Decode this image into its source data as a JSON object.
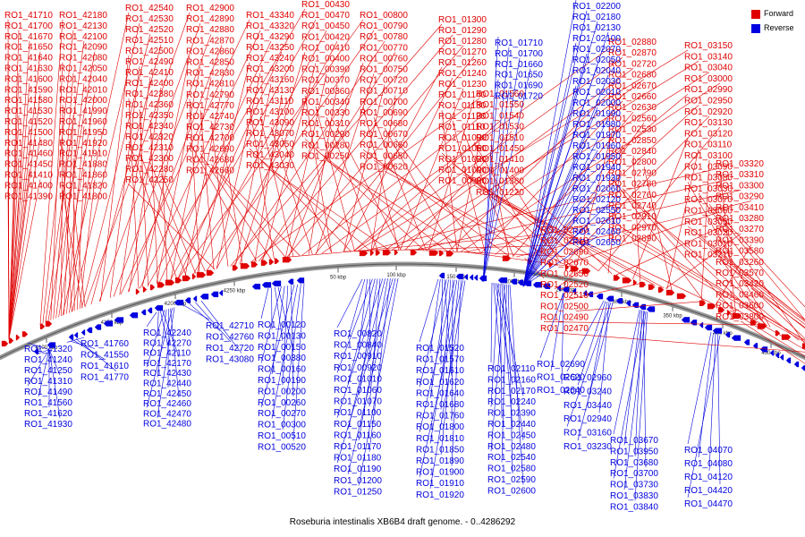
{
  "caption": "Roseburia intestinalis XB6B4 draft genome. - 0..4286292",
  "legend": [
    {
      "label": "Forward",
      "color": "#e00000"
    },
    {
      "label": "Reverse",
      "color": "#0000e0"
    }
  ],
  "ticks": [
    "4100 kbp",
    "4150 kbp",
    "4200 kbp",
    "4250 kbp",
    "50 kbp",
    "100 kbp",
    "150 kbp",
    "200 kbp",
    "250 kbp",
    "300 kbp",
    "350 kbp",
    "400 kbp",
    "450 kbp"
  ],
  "forward_groups": [
    {
      "labels": [
        "RO1_41710",
        "RO1_41700",
        "RO1_41670",
        "RO1_41650",
        "RO1_41640",
        "RO1_41630",
        "RO1_41600",
        "RO1_41590",
        "RO1_41580",
        "RO1_41530",
        "RO1_41520",
        "RO1_41500",
        "RO1_41480",
        "RO1_41460",
        "RO1_41450",
        "RO1_41410",
        "RO1_41400",
        "RO1_41390"
      ]
    },
    {
      "labels": [
        "RO1_42180",
        "RO1_42130",
        "RO1_42100",
        "RO1_42090",
        "RO1_42080",
        "RO1_42050",
        "RO1_42040",
        "RO1_42010",
        "RO1_42000",
        "RO1_41990",
        "RO1_41960",
        "RO1_41950",
        "RO1_41920",
        "RO1_41910",
        "RO1_41880",
        "RO1_41860",
        "RO1_41820",
        "RO1_41800"
      ]
    },
    {
      "labels": [
        "RO1_42540",
        "RO1_42530",
        "RO1_42520",
        "RO1_42510",
        "RO1_42500",
        "RO1_42490",
        "RO1_42410",
        "RO1_42400",
        "RO1_42380",
        "RO1_42360",
        "RO1_42350",
        "RO1_42340",
        "RO1_42320",
        "RO1_42310",
        "RO1_42300",
        "RO1_42280",
        "RO1_42250"
      ]
    },
    {
      "labels": [
        "RO1_42900",
        "RO1_42890",
        "RO1_42880",
        "RO1_42870",
        "RO1_42860",
        "RO1_42850",
        "RO1_42830",
        "RO1_42810",
        "RO1_42790",
        "RO1_42770",
        "RO1_42740",
        "RO1_42730",
        "RO1_42700",
        "RO1_42690",
        "RO1_42680",
        "RO1_42660"
      ]
    },
    {
      "labels": [
        "RO1_43340",
        "RO1_43320",
        "RO1_43290",
        "RO1_43250",
        "RO1_43240",
        "RO1_43200",
        "RO1_43160",
        "RO1_43130",
        "RO1_43110",
        "RO1_43100",
        "RO1_43090",
        "RO1_43070",
        "RO1_43050",
        "RO1_43040",
        "RO1_43030"
      ]
    },
    {
      "labels": [
        "RO1_00430",
        "RO1_00470",
        "RO1_00450",
        "RO1_00420",
        "RO1_00410",
        "RO1_00400",
        "RO1_00390",
        "RO1_00370",
        "RO1_00360",
        "RO1_00340",
        "RO1_00330",
        "RO1_00310",
        "RO1_00290",
        "RO1_00280",
        "RO1_00250"
      ]
    },
    {
      "labels": [
        "RO1_00800",
        "RO1_00790",
        "RO1_00780",
        "RO1_00770",
        "RO1_00760",
        "RO1_00750",
        "RO1_00720",
        "RO1_00710",
        "RO1_00700",
        "RO1_00690",
        "RO1_00680",
        "RO1_00670",
        "RO1_00660",
        "RO1_00650",
        "RO1_00620"
      ]
    },
    {
      "labels": [
        "RO1_01300",
        "RO1_01290",
        "RO1_01280",
        "RO1_01270",
        "RO1_01260",
        "RO1_01240",
        "RO1_01230",
        "RO1_01140",
        "RO1_01130",
        "RO1_01120",
        "RO1_01110",
        "RO1_01090",
        "RO1_01050",
        "RO1_01020",
        "RO1_01000",
        "RO1_00980"
      ]
    },
    {
      "labels": [
        "RO1_01560",
        "RO1_01550",
        "RO1_01540",
        "RO1_01530",
        "RO1_01510",
        "RO1_01450",
        "RO1_01410",
        "RO1_01400",
        "RO1_01380",
        "RO1_01220"
      ]
    },
    {
      "labels": [
        "RO1_02730",
        "RO1_02710",
        "RO1_02690",
        "RO1_02670",
        "RO1_02650",
        "RO1_02520",
        "RO1_02510",
        "RO1_02500",
        "RO1_02490",
        "RO1_02470"
      ]
    },
    {
      "labels": [
        "RO1_02880",
        "RO1_02870",
        "RO1_02720",
        "RO1_02680",
        "RO1_02670",
        "RO1_02660",
        "RO1_02630",
        "RO1_02560",
        "RO1_02530",
        "RO1_02850",
        "RO1_02840",
        "RO1_02800",
        "RO1_02790",
        "RO1_02780",
        "RO1_02760",
        "RO1_02740",
        "RO1_02910",
        "RO1_02970",
        "RO1_02890"
      ]
    },
    {
      "labels": [
        "RO1_03150",
        "RO1_03140",
        "RO1_03040",
        "RO1_03000",
        "RO1_02990",
        "RO1_02950",
        "RO1_02920",
        "RO1_03130",
        "RO1_03120",
        "RO1_03110",
        "RO1_03100",
        "RO1_03090",
        "RO1_03080",
        "RO1_03030",
        "RO1_03070",
        "RO1_03060",
        "RO1_03050",
        "RO1_03020",
        "RO1_03010",
        "RO1_03210"
      ]
    },
    {
      "labels": [
        "RO1_03320",
        "RO1_03310",
        "RO1_03300",
        "RO1_03290",
        "RO1_03410",
        "RO1_03280",
        "RO1_03270",
        "RO1_03390",
        "RO1_03580",
        "RO1_03260",
        "RO1_03570",
        "RO1_03420",
        "RO1_03460",
        "RO1_03600",
        "RO1_03800"
      ]
    }
  ],
  "reverse_groups": [
    {
      "labels": [
        "RO1_41320",
        "RO1_41240",
        "RO1_41250",
        "RO1_41310",
        "RO1_41490",
        "RO1_41560",
        "RO1_41620",
        "RO1_41930"
      ]
    },
    {
      "labels": [
        "RO1_41760",
        "RO1_41550",
        "RO1_41610",
        "RO1_41770"
      ]
    },
    {
      "labels": [
        "RO1_42240",
        "RO1_42270",
        "RO1_42110",
        "RO1_42170",
        "RO1_42430",
        "RO1_42440",
        "RO1_42450",
        "RO1_42460",
        "RO1_42470",
        "RO1_42480"
      ]
    },
    {
      "labels": [
        "RO1_42710",
        "RO1_42760",
        "RO1_42720",
        "RO1_43080"
      ]
    },
    {
      "labels": [
        "RO1_00120",
        "RO1_00130",
        "RO1_00150",
        "RO1_00380",
        "RO1_00160",
        "RO1_00190",
        "RO1_00200",
        "RO1_00260",
        "RO1_00270",
        "RO1_00300",
        "RO1_00510",
        "RO1_00520"
      ]
    },
    {
      "labels": [
        "RO1_00820",
        "RO1_00840",
        "RO1_00910",
        "RO1_00920",
        "RO1_01010",
        "RO1_01060",
        "RO1_01070",
        "RO1_01100",
        "RO1_01150",
        "RO1_01160",
        "RO1_01170",
        "RO1_01180",
        "RO1_01190",
        "RO1_01200",
        "RO1_01250"
      ]
    },
    {
      "labels": [
        "RO1_01520",
        "RO1_01570",
        "RO1_01610",
        "RO1_01620",
        "RO1_01640",
        "RO1_01680",
        "RO1_01760",
        "RO1_01800",
        "RO1_01810",
        "RO1_01850",
        "RO1_01890",
        "RO1_01900",
        "RO1_01910",
        "RO1_01920"
      ]
    },
    {
      "labels": [
        "RO1_02110",
        "RO1_02160",
        "RO1_02170",
        "RO1_02240",
        "RO1_02390",
        "RO1_02440",
        "RO1_02450",
        "RO1_02480",
        "RO1_02540",
        "RO1_02580",
        "RO1_02590",
        "RO1_02600"
      ]
    },
    {
      "labels": [
        "RO1_02690",
        "RO1_02620",
        "RO1_02640"
      ]
    },
    {
      "labels": [
        "RO1_02960",
        "RO1_03240",
        "RO1_03440",
        "RO1_02940",
        "RO1_03160",
        "RO1_03230"
      ]
    },
    {
      "labels": [
        "RO1_03670",
        "RO1_03950",
        "RO1_03680",
        "RO1_03700",
        "RO1_03730",
        "RO1_03830",
        "RO1_03840",
        "RO1_03900"
      ]
    },
    {
      "labels": [
        "RO1_04070",
        "RO1_04080",
        "RO1_04120",
        "RO1_04420",
        "RO1_04470"
      ]
    },
    {
      "labels": [
        "RO1_02200",
        "RO1_02180",
        "RO1_02130",
        "RO1_02100",
        "RO1_02070",
        "RO1_02050",
        "RO1_02040",
        "RO1_02030",
        "RO1_02010",
        "RO1_02000",
        "RO1_01990",
        "RO1_01980",
        "RO1_01970",
        "RO1_01960",
        "RO1_01950",
        "RO1_01940",
        "RO1_01930",
        "RO1_02060",
        "RO1_02120",
        "RO1_02550",
        "RO1_02610",
        "RO1_02460",
        "RO1_02650"
      ]
    },
    {
      "labels": [
        "RO1_01710",
        "RO1_01700",
        "RO1_01660",
        "RO1_01650",
        "RO1_01690",
        "RO1_01720"
      ]
    }
  ]
}
